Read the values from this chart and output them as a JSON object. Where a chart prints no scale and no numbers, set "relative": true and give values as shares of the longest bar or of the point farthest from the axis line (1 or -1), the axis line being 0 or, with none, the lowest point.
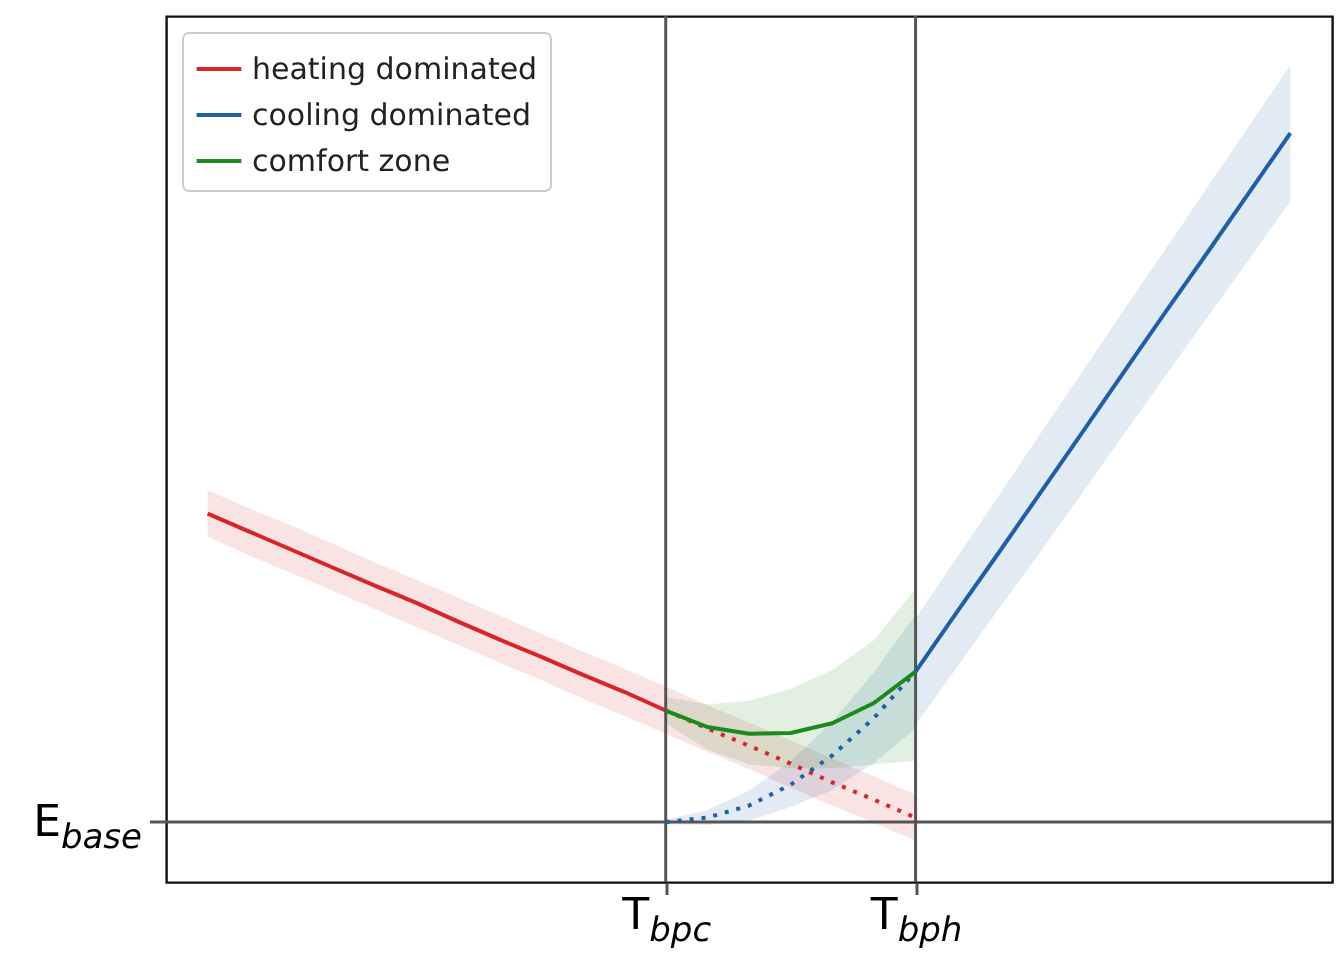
{
  "chart_data": {
    "type": "line",
    "relative": true,
    "legend": "top left",
    "categories": [
      null,
      null,
      null,
      null,
      null,
      null,
      null,
      null,
      null,
      null,
      null,
      null,
      "T$_{bpc}$",
      null,
      null,
      null,
      null,
      null,
      "T$_{bph}$",
      null,
      null,
      null,
      null,
      null,
      null,
      null,
      null,
      null,
      null
    ],
    "series": [
      {
        "name": "heating dominated",
        "color": "#d62728",
        "line_style": "solid",
        "values": [
          null,
          0.492,
          0.468,
          0.444,
          0.42,
          0.396,
          0.373,
          0.348,
          0.324,
          0.301,
          0.277,
          0.254,
          0.229,
          null,
          null,
          null,
          null,
          null,
          null,
          null,
          null,
          null,
          null,
          null,
          null,
          null,
          null,
          null,
          null
        ],
        "lower": [
          null,
          0.461,
          0.436,
          0.413,
          0.389,
          0.365,
          0.341,
          0.317,
          0.293,
          0.27,
          0.245,
          0.222,
          0.198,
          null,
          null,
          null,
          null,
          null,
          null,
          null,
          null,
          null,
          null,
          null,
          null,
          null,
          null,
          null,
          null
        ],
        "upper": [
          null,
          0.523,
          0.499,
          0.476,
          0.452,
          0.427,
          0.404,
          0.38,
          0.356,
          0.332,
          0.308,
          0.285,
          0.261,
          null,
          null,
          null,
          null,
          null,
          null,
          null,
          null,
          null,
          null,
          null,
          null,
          null,
          null,
          null,
          null
        ]
      },
      {
        "color": "#d62728",
        "line_style": "dotted",
        "values": [
          null,
          null,
          null,
          null,
          null,
          null,
          null,
          null,
          null,
          null,
          null,
          null,
          0.229,
          0.205,
          0.182,
          0.158,
          0.133,
          0.11,
          0.086,
          null,
          null,
          null,
          null,
          null,
          null,
          null,
          null,
          null,
          null
        ],
        "lower": [
          null,
          null,
          null,
          null,
          null,
          null,
          null,
          null,
          null,
          null,
          null,
          null,
          0.198,
          0.174,
          0.151,
          0.126,
          0.102,
          0.079,
          0.055,
          null,
          null,
          null,
          null,
          null,
          null,
          null,
          null,
          null,
          null
        ],
        "upper": [
          null,
          null,
          null,
          null,
          null,
          null,
          null,
          null,
          null,
          null,
          null,
          null,
          0.261,
          0.236,
          0.213,
          0.189,
          0.165,
          0.141,
          0.117,
          null,
          null,
          null,
          null,
          null,
          null,
          null,
          null,
          null,
          null
        ]
      },
      {
        "name": "cooling dominated",
        "color": "#1f5fa8",
        "line_style": "solid",
        "values": [
          null,
          null,
          null,
          null,
          null,
          null,
          null,
          null,
          null,
          null,
          null,
          null,
          null,
          null,
          null,
          null,
          null,
          null,
          0.281,
          0.361,
          0.44,
          0.52,
          0.6,
          0.681,
          0.761,
          0.84,
          0.92,
          1,
          null
        ],
        "lower": [
          null,
          null,
          null,
          null,
          null,
          null,
          null,
          null,
          null,
          null,
          null,
          null,
          null,
          null,
          null,
          null,
          null,
          null,
          0.21,
          0.287,
          0.365,
          0.441,
          0.519,
          0.598,
          0.676,
          0.754,
          0.831,
          0.909,
          null
        ],
        "upper": [
          null,
          null,
          null,
          null,
          null,
          null,
          null,
          null,
          null,
          null,
          null,
          null,
          null,
          null,
          null,
          null,
          null,
          null,
          0.352,
          0.434,
          0.516,
          0.599,
          0.681,
          0.764,
          0.845,
          0.927,
          1.009,
          1.091,
          null
        ]
      },
      {
        "color": "#1f5fa8",
        "line_style": "dotted",
        "values": [
          null,
          null,
          null,
          null,
          null,
          null,
          null,
          null,
          null,
          null,
          null,
          null,
          0.08,
          0.086,
          0.102,
          0.13,
          0.169,
          0.219,
          0.281,
          null,
          null,
          null,
          null,
          null,
          null,
          null,
          null,
          null,
          null
        ],
        "lower": [
          null,
          null,
          null,
          null,
          null,
          null,
          null,
          null,
          null,
          null,
          null,
          null,
          0.077,
          0.076,
          0.082,
          0.1,
          0.123,
          0.159,
          0.205,
          null,
          null,
          null,
          null,
          null,
          null,
          null,
          null,
          null,
          null
        ],
        "upper": [
          null,
          null,
          null,
          null,
          null,
          null,
          null,
          null,
          null,
          null,
          null,
          null,
          0.083,
          0.096,
          0.122,
          0.161,
          0.214,
          0.28,
          0.357,
          null,
          null,
          null,
          null,
          null,
          null,
          null,
          null,
          null,
          null
        ]
      },
      {
        "name": "comfort zone",
        "color": "#1a8a1a",
        "line_style": "solid",
        "values": [
          null,
          null,
          null,
          null,
          null,
          null,
          null,
          null,
          null,
          null,
          null,
          null,
          0.229,
          0.207,
          0.198,
          0.199,
          0.212,
          0.239,
          0.281,
          null,
          null,
          null,
          null,
          null,
          null,
          null,
          null,
          null,
          null
        ],
        "lower": [
          null,
          null,
          null,
          null,
          null,
          null,
          null,
          null,
          null,
          null,
          null,
          null,
          0.212,
          0.177,
          0.157,
          0.152,
          0.152,
          0.157,
          0.162,
          null,
          null,
          null,
          null,
          null,
          null,
          null,
          null,
          null,
          null
        ],
        "upper": [
          null,
          null,
          null,
          null,
          null,
          null,
          null,
          null,
          null,
          null,
          null,
          null,
          0.247,
          0.237,
          0.242,
          0.258,
          0.283,
          0.323,
          0.392,
          null,
          null,
          null,
          null,
          null,
          null,
          null,
          null,
          null,
          null
        ]
      }
    ],
    "ref_lines": [
      {
        "axis": "x",
        "value": "T$_{bpc}$",
        "color": "#555555"
      },
      {
        "axis": "x",
        "value": "T$_{bph}$",
        "color": "#555555"
      },
      {
        "axis": "y",
        "value": 0.08,
        "label": "E$_{base}$",
        "color": "#555555"
      }
    ]
  }
}
